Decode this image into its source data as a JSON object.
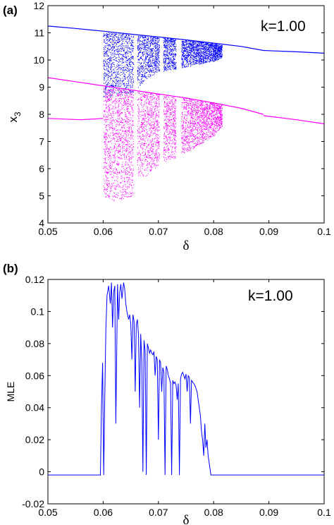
{
  "colors": {
    "upper_branch": "#0000ff",
    "lower_branch": "#ff00ff",
    "mle_line": "#0000ff"
  },
  "chart_data": [
    {
      "type": "scatter",
      "panel_label": "(a)",
      "annotation": "k=1.00",
      "xlabel": "δ",
      "ylabel": "x",
      "ylabel_sub": "3",
      "xlim": [
        0.05,
        0.1
      ],
      "ylim": [
        4,
        12
      ],
      "xticks": [
        0.05,
        0.06,
        0.07,
        0.08,
        0.09,
        0.1
      ],
      "xtick_labels": [
        "0.05",
        "0.06",
        "0.07",
        "0.08",
        "0.09",
        "0.1"
      ],
      "yticks": [
        4,
        5,
        6,
        7,
        8,
        9,
        10,
        11,
        12
      ],
      "ytick_labels": [
        "4",
        "5",
        "6",
        "7",
        "8",
        "9",
        "10",
        "11",
        "12"
      ],
      "series": [
        {
          "color": "#0000ff",
          "periodic_branches": [
            {
              "x": [
                0.05,
                0.055,
                0.06,
                0.065,
                0.07,
                0.075,
                0.08,
                0.085,
                0.089
              ],
              "y": [
                11.25,
                11.16,
                11.06,
                10.95,
                10.85,
                10.74,
                10.62,
                10.5,
                10.35
              ]
            },
            {
              "x": [
                0.089,
                0.095,
                0.1
              ],
              "y": [
                10.35,
                10.3,
                10.25
              ]
            }
          ],
          "chaotic_band": {
            "x": [
              0.06,
              0.065,
              0.0675,
              0.07,
              0.075,
              0.08,
              0.0815
            ],
            "y_top": [
              11.05,
              10.98,
              10.9,
              10.86,
              10.74,
              10.62,
              10.55
            ],
            "y_bottom": [
              8.6,
              8.7,
              9.25,
              9.55,
              9.75,
              9.95,
              10.1
            ]
          }
        },
        {
          "color": "#ff00ff",
          "periodic_branches": [
            {
              "x": [
                0.05,
                0.055,
                0.06,
                0.065,
                0.07,
                0.075,
                0.08,
                0.085,
                0.089
              ],
              "y": [
                9.35,
                9.2,
                9.05,
                8.9,
                8.75,
                8.6,
                8.42,
                8.22,
                8.0
              ]
            },
            {
              "x": [
                0.05,
                0.056,
                0.06
              ],
              "y": [
                7.85,
                7.8,
                7.85
              ]
            },
            {
              "x": [
                0.089,
                0.095,
                0.1
              ],
              "y": [
                7.95,
                7.8,
                7.65
              ]
            }
          ],
          "chaotic_band": {
            "x": [
              0.06,
              0.0625,
              0.065,
              0.0675,
              0.07,
              0.075,
              0.08,
              0.0815
            ],
            "y_top": [
              9.0,
              8.95,
              8.9,
              8.85,
              8.75,
              8.6,
              8.45,
              8.35
            ],
            "y_bottom": [
              5.9,
              5.85,
              5.8,
              5.7,
              6.1,
              6.6,
              7.2,
              7.55
            ]
          },
          "sparse_tail": {
            "x": [
              0.06,
              0.062,
              0.064,
              0.0655
            ],
            "y_top": [
              5.9,
              5.9,
              5.9,
              5.9
            ],
            "y_bottom": [
              5.0,
              4.8,
              4.9,
              5.0
            ]
          }
        }
      ],
      "periodic_windows": [
        0.0658,
        0.0705,
        0.0735,
        0.0738
      ],
      "period_doubling_points": [
        0.0815,
        0.089
      ]
    },
    {
      "type": "line",
      "panel_label": "(b)",
      "annotation": "k=1.00",
      "xlabel": "δ",
      "ylabel": "MLE",
      "xlim": [
        0.05,
        0.1
      ],
      "ylim": [
        -0.02,
        0.12
      ],
      "xticks": [
        0.05,
        0.06,
        0.07,
        0.08,
        0.09,
        0.1
      ],
      "xtick_labels": [
        "0.05",
        "0.06",
        "0.07",
        "0.08",
        "0.09",
        "0.1"
      ],
      "yticks": [
        -0.02,
        0,
        0.02,
        0.04,
        0.06,
        0.08,
        0.1,
        0.12
      ],
      "ytick_labels": [
        "-0.02",
        "0",
        "0.02",
        "0.04",
        "0.06",
        "0.08",
        "0.1",
        "0.12"
      ],
      "series": [
        {
          "color": "#0000ff",
          "x": [
            0.05,
            0.0595,
            0.0597,
            0.0599,
            0.0601,
            0.0603,
            0.0605,
            0.0607,
            0.061,
            0.0613,
            0.0615,
            0.0617,
            0.0619,
            0.0621,
            0.0623,
            0.0626,
            0.0628,
            0.063,
            0.0632,
            0.0634,
            0.0637,
            0.0639,
            0.0641,
            0.0643,
            0.0646,
            0.0648,
            0.065,
            0.0652,
            0.0654,
            0.0656,
            0.0658,
            0.066,
            0.0662,
            0.0664,
            0.0666,
            0.0668,
            0.067,
            0.0672,
            0.0674,
            0.0676,
            0.0678,
            0.068,
            0.0682,
            0.0684,
            0.0686,
            0.0688,
            0.069,
            0.0692,
            0.0694,
            0.0696,
            0.0698,
            0.07,
            0.0702,
            0.0704,
            0.0706,
            0.0708,
            0.071,
            0.0712,
            0.0714,
            0.0716,
            0.0718,
            0.072,
            0.0722,
            0.0724,
            0.0726,
            0.0728,
            0.073,
            0.0732,
            0.0734,
            0.0736,
            0.0738,
            0.074,
            0.0742,
            0.0744,
            0.0746,
            0.0748,
            0.075,
            0.0752,
            0.0754,
            0.0756,
            0.0758,
            0.076,
            0.0762,
            0.0764,
            0.0766,
            0.0768,
            0.077,
            0.0772,
            0.0774,
            0.0776,
            0.0778,
            0.078,
            0.0782,
            0.0784,
            0.0786,
            0.0788,
            0.079,
            0.0795,
            0.1
          ],
          "y": [
            -0.002,
            -0.002,
            0.04,
            0.068,
            -0.002,
            0.05,
            0.09,
            0.11,
            0.116,
            0.105,
            0.118,
            0.09,
            0.112,
            0.116,
            0.03,
            0.117,
            0.095,
            0.112,
            0.117,
            0.108,
            0.118,
            0.114,
            0.105,
            0.1,
            0.095,
            0.098,
            0.092,
            0.07,
            0.098,
            0.094,
            0.05,
            0.092,
            0.095,
            0.085,
            0.04,
            0.086,
            0.068,
            0.0,
            0.082,
            0.075,
            -0.002,
            0.08,
            0.077,
            0.074,
            0.076,
            0.074,
            0.073,
            0.075,
            0.06,
            0.072,
            0.07,
            0.02,
            0.07,
            0.068,
            0.05,
            0.065,
            0.062,
            -0.002,
            0.066,
            0.064,
            0.06,
            0.058,
            0.055,
            -0.002,
            0.057,
            0.055,
            0.056,
            0.054,
            0.045,
            0.055,
            -0.002,
            0.058,
            0.061,
            0.062,
            0.06,
            0.058,
            0.061,
            0.05,
            0.06,
            0.059,
            0.03,
            0.057,
            0.056,
            0.055,
            0.054,
            0.052,
            0.05,
            0.045,
            0.04,
            0.035,
            0.025,
            0.02,
            0.01,
            0.03,
            0.015,
            0.02,
            0.01,
            -0.002,
            -0.002
          ]
        }
      ]
    }
  ]
}
